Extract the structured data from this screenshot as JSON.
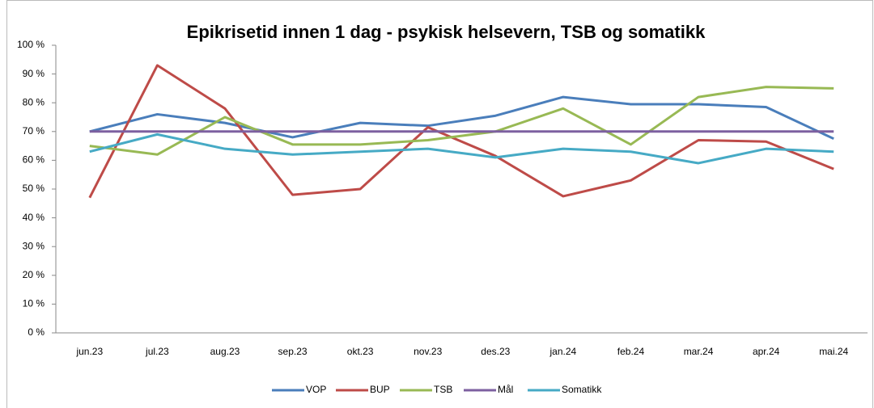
{
  "chart_data": {
    "type": "line",
    "title": "Epikrisetid innen 1 dag - psykisk helsevern, TSB og somatikk",
    "categories": [
      "jun.23",
      "jul.23",
      "aug.23",
      "sep.23",
      "okt.23",
      "nov.23",
      "des.23",
      "jan.24",
      "feb.24",
      "mar.24",
      "apr.24",
      "mai.24"
    ],
    "series": [
      {
        "name": "VOP",
        "color": "#4a7ebb",
        "values": [
          70,
          76,
          73,
          68,
          73,
          72,
          75.5,
          82,
          79.5,
          79.5,
          78.5,
          67.5
        ]
      },
      {
        "name": "BUP",
        "color": "#be4b48",
        "values": [
          47,
          93,
          78,
          48,
          50,
          71.5,
          61.5,
          47.5,
          53,
          67,
          66.5,
          57
        ]
      },
      {
        "name": "TSB",
        "color": "#98b954",
        "values": [
          65,
          62,
          75,
          65.5,
          65.5,
          67,
          70,
          78,
          65.5,
          82,
          85.5,
          85
        ]
      },
      {
        "name": "Mål",
        "color": "#7d60a0",
        "values": [
          70,
          70,
          70,
          70,
          70,
          70,
          70,
          70,
          70,
          70,
          70,
          70
        ]
      },
      {
        "name": "Somatikk",
        "color": "#46aac5",
        "values": [
          63,
          69,
          64,
          62,
          63,
          64,
          61,
          64,
          63,
          59,
          64,
          63
        ]
      }
    ],
    "ylim": [
      0,
      100
    ],
    "yticks": [
      {
        "value": 0,
        "label": "0 %"
      },
      {
        "value": 10,
        "label": "10 %"
      },
      {
        "value": 20,
        "label": "20 %"
      },
      {
        "value": 30,
        "label": "30 %"
      },
      {
        "value": 40,
        "label": "40 %"
      },
      {
        "value": 50,
        "label": "50 %"
      },
      {
        "value": 60,
        "label": "60 %"
      },
      {
        "value": 70,
        "label": "70 %"
      },
      {
        "value": 80,
        "label": "80 %"
      },
      {
        "value": 90,
        "label": "90 %"
      },
      {
        "value": 100,
        "label": "100 %"
      }
    ],
    "legend": "bottom"
  }
}
